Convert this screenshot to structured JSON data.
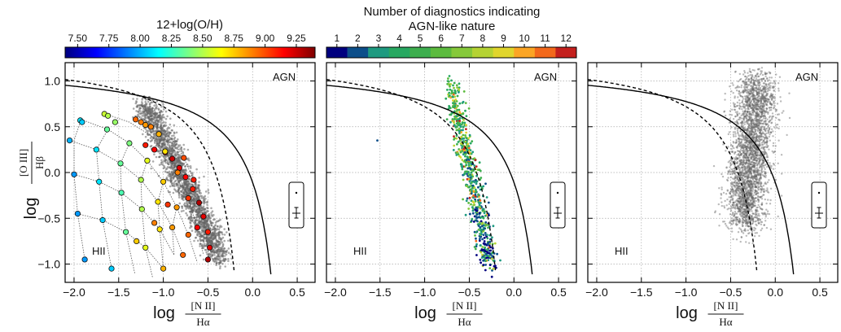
{
  "chart_data": {
    "type": "scatter",
    "xlim": [
      -2.1,
      0.7
    ],
    "ylim": [
      -1.2,
      1.2
    ],
    "xticks": [
      -2.0,
      -1.5,
      -1.0,
      -0.5,
      0.0,
      0.5
    ],
    "xtick_labels": [
      "−2.0",
      "−1.5",
      "−1.0",
      "−0.5",
      "0.0",
      "0.5"
    ],
    "yticks": [
      -1.0,
      -0.5,
      0.0,
      0.5,
      1.0
    ],
    "ytick_labels": [
      "−1.0",
      "−0.5",
      "0.0",
      "0.5",
      "1.0"
    ],
    "grid": true,
    "xlabel": {
      "prefix": "log",
      "numerator": "[N II]",
      "denominator": "Hα"
    },
    "ylabel": {
      "prefix": "log",
      "numerator": "[O III]",
      "denominator": "Hβ"
    },
    "region_labels": {
      "agn": "AGN",
      "hii": "HII"
    },
    "curves": [
      {
        "name": "kewley_max_starburst",
        "style": "solid",
        "a": 0.61,
        "b": 0.47,
        "c": 1.19,
        "x_max": 0.21
      },
      {
        "name": "kauffmann_sf",
        "style": "dashed",
        "a": 0.61,
        "b": 0.05,
        "c": 1.3,
        "x_max": -0.2
      }
    ],
    "colorbars": [
      {
        "title": "12+log(O/H)",
        "min": 7.4,
        "max": 9.4,
        "ticks": [
          7.5,
          7.75,
          8.0,
          8.25,
          8.5,
          8.75,
          9.0,
          9.25
        ],
        "tick_labels": [
          "7.50",
          "7.75",
          "8.00",
          "8.25",
          "8.50",
          "8.75",
          "9.00",
          "9.25"
        ],
        "colors": [
          "#00007f",
          "#0000ff",
          "#007fff",
          "#00ffff",
          "#7fff7f",
          "#ffff00",
          "#ff7f00",
          "#ff0000",
          "#7f0000"
        ]
      },
      {
        "title_line1": "Number of diagnostics indicating",
        "title_line2": "AGN-like nature",
        "ticks": [
          1,
          2,
          3,
          4,
          5,
          6,
          7,
          8,
          9,
          10,
          11,
          12
        ],
        "tick_labels": [
          "1",
          "2",
          "3",
          "4",
          "5",
          "6",
          "7",
          "8",
          "9",
          "10",
          "11",
          "12"
        ],
        "colors": [
          "#00007f",
          "#0c4e8a",
          "#1e9a80",
          "#27a861",
          "#3dae4e",
          "#5cbb3e",
          "#86c93a",
          "#b5d333",
          "#e0d52c",
          "#fba524",
          "#f3691b",
          "#c4201d"
        ]
      }
    ],
    "panels": [
      {
        "name": "photoionization-grid",
        "grid_lines_a": [
          [
            [
              -1.92,
              0.58
            ],
            [
              -1.62,
              0.47
            ],
            [
              -1.38,
              0.32
            ],
            [
              -1.18,
              0.13
            ],
            [
              -1.0,
              -0.1
            ],
            [
              -0.85,
              -0.38
            ],
            [
              -0.72,
              -0.68
            ],
            [
              -0.62,
              -0.98
            ]
          ],
          [
            [
              -1.65,
              0.64
            ],
            [
              -1.38,
              0.55
            ],
            [
              -1.15,
              0.41
            ],
            [
              -0.98,
              0.23
            ],
            [
              -0.84,
              0.0
            ],
            [
              -0.72,
              -0.28
            ],
            [
              -0.62,
              -0.6
            ],
            [
              -0.55,
              -0.9
            ]
          ],
          [
            [
              -1.32,
              0.62
            ],
            [
              -1.08,
              0.52
            ],
            [
              -0.9,
              0.36
            ],
            [
              -0.77,
              0.16
            ],
            [
              -0.66,
              -0.08
            ],
            [
              -0.58,
              -0.36
            ],
            [
              -0.52,
              -0.68
            ],
            [
              -0.48,
              -0.98
            ]
          ],
          [
            [
              -2.05,
              0.35
            ],
            [
              -1.75,
              0.25
            ],
            [
              -1.48,
              0.1
            ],
            [
              -1.25,
              -0.08
            ],
            [
              -1.06,
              -0.32
            ],
            [
              -0.9,
              -0.6
            ],
            [
              -0.78,
              -0.9
            ]
          ],
          [
            [
              -2.0,
              -0.02
            ],
            [
              -1.72,
              -0.1
            ],
            [
              -1.47,
              -0.22
            ],
            [
              -1.24,
              -0.4
            ],
            [
              -1.04,
              -0.62
            ],
            [
              -0.88,
              -0.9
            ]
          ],
          [
            [
              -1.96,
              -0.45
            ],
            [
              -1.68,
              -0.52
            ],
            [
              -1.42,
              -0.65
            ],
            [
              -1.2,
              -0.82
            ],
            [
              -1.0,
              -1.05
            ]
          ]
        ],
        "grid_lines_b": [
          [
            [
              -1.92,
              0.58
            ],
            [
              -2.0,
              0.35
            ],
            [
              -2.0,
              -0.02
            ],
            [
              -1.96,
              -0.45
            ],
            [
              -1.88,
              -0.95
            ]
          ],
          [
            [
              -1.62,
              0.47
            ],
            [
              -1.75,
              0.25
            ],
            [
              -1.72,
              -0.1
            ],
            [
              -1.68,
              -0.52
            ],
            [
              -1.58,
              -1.05
            ]
          ],
          [
            [
              -1.38,
              0.32
            ],
            [
              -1.48,
              0.1
            ],
            [
              -1.47,
              -0.22
            ],
            [
              -1.42,
              -0.65
            ],
            [
              -1.32,
              -1.1
            ]
          ],
          [
            [
              -1.18,
              0.13
            ],
            [
              -1.25,
              -0.08
            ],
            [
              -1.24,
              -0.4
            ],
            [
              -1.2,
              -0.82
            ],
            [
              -1.12,
              -1.15
            ]
          ],
          [
            [
              -1.0,
              -0.1
            ],
            [
              -1.06,
              -0.32
            ],
            [
              -1.04,
              -0.62
            ],
            [
              -1.0,
              -1.05
            ]
          ],
          [
            [
              -0.85,
              -0.38
            ],
            [
              -0.9,
              -0.6
            ],
            [
              -0.88,
              -0.9
            ]
          ]
        ],
        "grid_points": [
          {
            "x": -1.93,
            "y": 0.57,
            "z": 8.1
          },
          {
            "x": -1.91,
            "y": 0.55,
            "z": 8.05
          },
          {
            "x": -1.66,
            "y": 0.64,
            "z": 8.55
          },
          {
            "x": -1.62,
            "y": 0.62,
            "z": 8.5
          },
          {
            "x": -1.54,
            "y": 0.55,
            "z": 8.45
          },
          {
            "x": -1.31,
            "y": 0.58,
            "z": 8.95
          },
          {
            "x": -1.25,
            "y": 0.55,
            "z": 8.9
          },
          {
            "x": -1.2,
            "y": 0.52,
            "z": 8.85
          },
          {
            "x": -1.14,
            "y": 0.5,
            "z": 8.9
          },
          {
            "x": -1.05,
            "y": 0.42,
            "z": 8.8
          },
          {
            "x": -1.2,
            "y": 0.3,
            "z": 9.1
          },
          {
            "x": -1.1,
            "y": 0.25,
            "z": 9.15
          },
          {
            "x": -0.98,
            "y": 0.22,
            "z": 9.2
          },
          {
            "x": -0.9,
            "y": 0.15,
            "z": 9.25
          },
          {
            "x": -0.82,
            "y": 0.05,
            "z": 9.2
          },
          {
            "x": -0.75,
            "y": -0.05,
            "z": 9.15
          },
          {
            "x": -0.67,
            "y": -0.18,
            "z": 9.1
          },
          {
            "x": -0.6,
            "y": -0.33,
            "z": 9.3
          },
          {
            "x": -0.55,
            "y": -0.48,
            "z": 9.2
          },
          {
            "x": -0.5,
            "y": -0.65,
            "z": 9.1
          },
          {
            "x": -0.48,
            "y": -0.82,
            "z": 9.2
          },
          {
            "x": -0.5,
            "y": -0.95,
            "z": 9.3
          },
          {
            "x": -1.63,
            "y": 0.47,
            "z": 8.35
          },
          {
            "x": -1.38,
            "y": 0.32,
            "z": 8.4
          },
          {
            "x": -1.18,
            "y": 0.13,
            "z": 8.6
          },
          {
            "x": -1.0,
            "y": -0.1,
            "z": 8.75
          },
          {
            "x": -0.85,
            "y": -0.38,
            "z": 8.85
          },
          {
            "x": -0.72,
            "y": -0.68,
            "z": 8.95
          },
          {
            "x": -0.98,
            "y": 0.23,
            "z": 8.7
          },
          {
            "x": -0.84,
            "y": 0.0,
            "z": 8.9
          },
          {
            "x": -0.72,
            "y": -0.28,
            "z": 9.05
          },
          {
            "x": -0.62,
            "y": -0.6,
            "z": 9.15
          },
          {
            "x": -0.77,
            "y": 0.16,
            "z": 9.0
          },
          {
            "x": -0.66,
            "y": -0.08,
            "z": 9.1
          },
          {
            "x": -2.05,
            "y": 0.35,
            "z": 8.0
          },
          {
            "x": -1.75,
            "y": 0.25,
            "z": 8.1
          },
          {
            "x": -1.48,
            "y": 0.1,
            "z": 8.35
          },
          {
            "x": -1.25,
            "y": -0.08,
            "z": 8.5
          },
          {
            "x": -1.06,
            "y": -0.32,
            "z": 8.7
          },
          {
            "x": -0.9,
            "y": -0.6,
            "z": 8.85
          },
          {
            "x": -0.78,
            "y": -0.9,
            "z": 8.95
          },
          {
            "x": -2.0,
            "y": -0.02,
            "z": 7.95
          },
          {
            "x": -1.72,
            "y": -0.1,
            "z": 8.1
          },
          {
            "x": -1.47,
            "y": -0.22,
            "z": 8.3
          },
          {
            "x": -1.24,
            "y": -0.4,
            "z": 8.5
          },
          {
            "x": -1.04,
            "y": -0.62,
            "z": 8.7
          },
          {
            "x": -1.96,
            "y": -0.45,
            "z": 7.95
          },
          {
            "x": -1.68,
            "y": -0.52,
            "z": 8.05
          },
          {
            "x": -1.42,
            "y": -0.65,
            "z": 8.35
          },
          {
            "x": -1.2,
            "y": -0.82,
            "z": 8.6
          },
          {
            "x": -1.0,
            "y": -1.05,
            "z": 8.8
          },
          {
            "x": -1.88,
            "y": -0.95,
            "z": 7.95
          },
          {
            "x": -1.58,
            "y": -1.05,
            "z": 8.05
          },
          {
            "x": -1.3,
            "y": -0.75,
            "z": 8.75
          },
          {
            "x": -1.1,
            "y": -0.55,
            "z": 8.9
          },
          {
            "x": -0.95,
            "y": -0.35,
            "z": 9.05
          }
        ]
      },
      {
        "name": "agn-diagnostics"
      },
      {
        "name": "all-galaxies"
      }
    ]
  }
}
